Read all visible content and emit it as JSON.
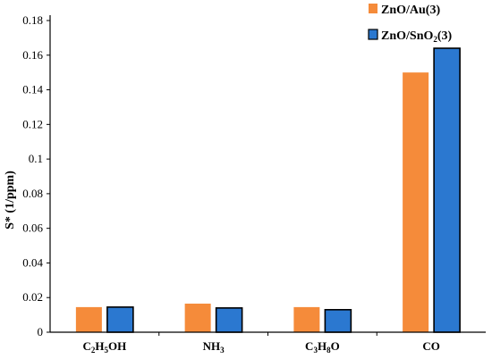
{
  "chart_data": {
    "type": "bar",
    "title": "",
    "xlabel": "",
    "ylabel": "S* (1/ppm)",
    "ylim": [
      0,
      0.18
    ],
    "yticks": [
      "0",
      "0.02",
      "0.04",
      "0.06",
      "0.08",
      "0.1",
      "0.12",
      "0.14",
      "0.16",
      "0.18"
    ],
    "grid": false,
    "legend_position": "top-right",
    "categories": [
      {
        "parts": [
          [
            "C",
            ""
          ],
          [
            "2",
            "sub"
          ],
          [
            "H",
            ""
          ],
          [
            "5",
            "sub"
          ],
          [
            "OH",
            ""
          ]
        ]
      },
      {
        "parts": [
          [
            "NH",
            ""
          ],
          [
            "3",
            "sub"
          ]
        ]
      },
      {
        "parts": [
          [
            "C",
            ""
          ],
          [
            "3",
            "sub"
          ],
          [
            "H",
            ""
          ],
          [
            "8",
            "sub"
          ],
          [
            "O",
            ""
          ]
        ]
      },
      {
        "parts": [
          [
            "CO",
            ""
          ]
        ]
      }
    ],
    "series": [
      {
        "name_parts": [
          [
            "ZnO/Au(3)",
            ""
          ]
        ],
        "color": "#F58B3A",
        "outline": false,
        "values": [
          0.0145,
          0.0165,
          0.0145,
          0.15
        ]
      },
      {
        "name_parts": [
          [
            "ZnO/SnO",
            ""
          ],
          [
            "2",
            "sub"
          ],
          [
            "(3)",
            ""
          ]
        ],
        "color": "#2B78D0",
        "outline": true,
        "values": [
          0.0145,
          0.014,
          0.013,
          0.164
        ]
      }
    ]
  }
}
